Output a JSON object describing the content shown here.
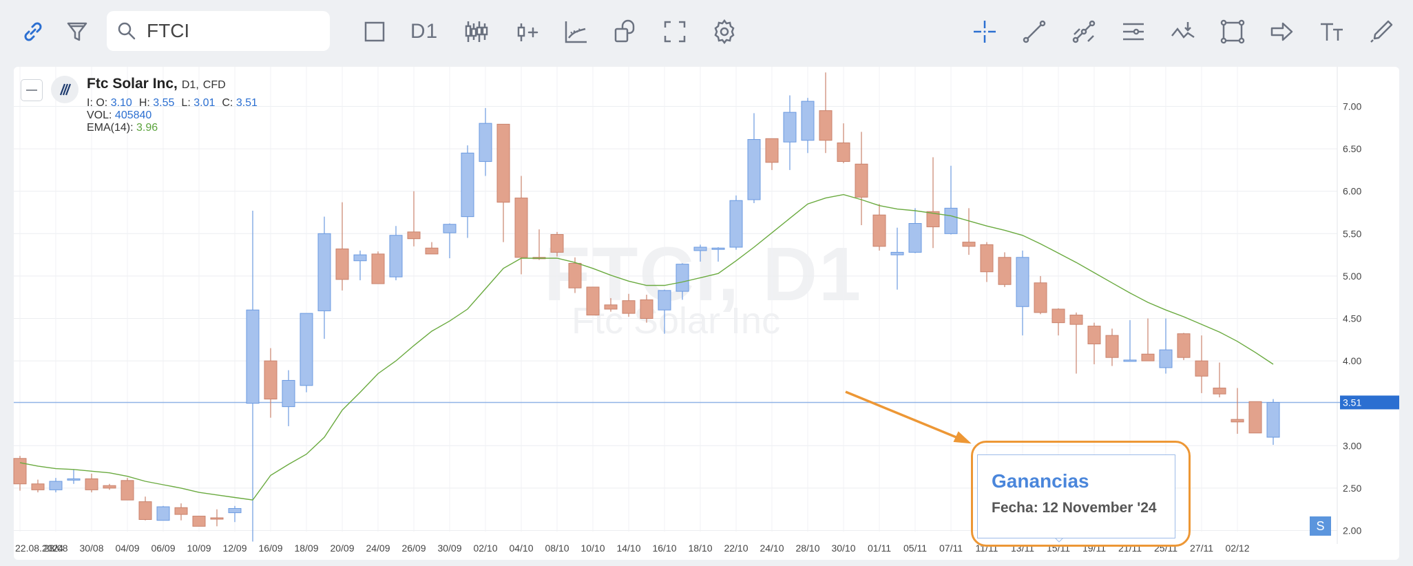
{
  "toolbar": {
    "search_value": "FTCI",
    "timeframe": "D1",
    "left_icons": [
      "link-icon",
      "filter-icon"
    ],
    "mid_icons": [
      "square-icon",
      "timeframe",
      "candles-icon",
      "add-indicator-icon",
      "indicators-icon",
      "compare-icon",
      "fullscreen-icon",
      "settings-icon"
    ],
    "right_icons": [
      "crosshair-icon",
      "trendline-icon",
      "multi-line-icon",
      "lines-icon",
      "wave-icon",
      "rectangle-icon",
      "arrow-icon",
      "text-icon",
      "brush-icon"
    ]
  },
  "legend": {
    "name": "Ftc Solar Inc,",
    "timeframe": "D1,",
    "type": "CFD",
    "o_label": "I: O:",
    "o": "3.10",
    "h_label": "H:",
    "h": "3.55",
    "l_label": "L:",
    "l": "3.01",
    "c_label": "C:",
    "c": "3.51",
    "vol_label": "VOL:",
    "vol": "405840",
    "ema_label": "EMA(14):",
    "ema": "3.96"
  },
  "watermark": {
    "symbol": "FTCI, D1",
    "name": "Ftc Solar Inc"
  },
  "tooltip": {
    "title": "Ganancias",
    "date": "Fecha: 12 November '24"
  },
  "badge": "S",
  "colors": {
    "up": "#a6c2ee",
    "up_border": "#6b9ae0",
    "down": "#e2a28c",
    "down_border": "#c9826c",
    "ema": "#6aaa3f",
    "price_line": "#2b6fd1",
    "highlight": "#ed9735"
  },
  "chart_data": {
    "type": "candlestick",
    "symbol": "FTCI",
    "current_price": "3.51",
    "y_ticks": [
      "7.00",
      "6.50",
      "6.00",
      "5.50",
      "5.00",
      "4.50",
      "4.00",
      "3.00",
      "2.50",
      "2.00"
    ],
    "x_tick_labels": [
      "22.08.2024",
      "28/08",
      "30/08",
      "04/09",
      "06/09",
      "10/09",
      "12/09",
      "16/09",
      "18/09",
      "20/09",
      "24/09",
      "26/09",
      "30/09",
      "02/10",
      "04/10",
      "08/10",
      "10/10",
      "14/10",
      "16/10",
      "18/10",
      "22/10",
      "24/10",
      "28/10",
      "30/10",
      "01/11",
      "05/11",
      "07/11",
      "11/11",
      "13/11",
      "15/11",
      "19/11",
      "21/11",
      "25/11",
      "27/11",
      "02/12"
    ],
    "candles": [
      {
        "o": 2.85,
        "h": 2.88,
        "l": 2.47,
        "c": 2.55
      },
      {
        "o": 2.55,
        "h": 2.6,
        "l": 2.45,
        "c": 2.48
      },
      {
        "o": 2.48,
        "h": 2.62,
        "l": 2.45,
        "c": 2.58
      },
      {
        "o": 2.6,
        "h": 2.72,
        "l": 2.55,
        "c": 2.61
      },
      {
        "o": 2.61,
        "h": 2.67,
        "l": 2.45,
        "c": 2.48
      },
      {
        "o": 2.53,
        "h": 2.55,
        "l": 2.48,
        "c": 2.5
      },
      {
        "o": 2.59,
        "h": 2.62,
        "l": 2.38,
        "c": 2.36
      },
      {
        "o": 2.34,
        "h": 2.4,
        "l": 2.12,
        "c": 2.13
      },
      {
        "o": 2.12,
        "h": 2.29,
        "l": 2.12,
        "c": 2.28
      },
      {
        "o": 2.27,
        "h": 2.32,
        "l": 2.12,
        "c": 2.19
      },
      {
        "o": 2.17,
        "h": 2.17,
        "l": 2.05,
        "c": 2.05
      },
      {
        "o": 2.15,
        "h": 2.25,
        "l": 2.05,
        "c": 2.14
      },
      {
        "o": 2.21,
        "h": 2.29,
        "l": 2.1,
        "c": 2.26
      },
      {
        "o": 3.5,
        "h": 5.77,
        "l": 1.87,
        "c": 4.6
      },
      {
        "o": 4.0,
        "h": 4.15,
        "l": 3.33,
        "c": 3.55
      },
      {
        "o": 3.46,
        "h": 3.89,
        "l": 3.23,
        "c": 3.77
      },
      {
        "o": 3.71,
        "h": 4.56,
        "l": 3.63,
        "c": 4.56
      },
      {
        "o": 4.59,
        "h": 5.7,
        "l": 4.26,
        "c": 5.5
      },
      {
        "o": 5.32,
        "h": 5.87,
        "l": 4.83,
        "c": 4.96
      },
      {
        "o": 5.18,
        "h": 5.3,
        "l": 4.95,
        "c": 5.25
      },
      {
        "o": 5.26,
        "h": 5.29,
        "l": 4.91,
        "c": 4.91
      },
      {
        "o": 4.99,
        "h": 5.59,
        "l": 4.95,
        "c": 5.48
      },
      {
        "o": 5.52,
        "h": 6.0,
        "l": 5.35,
        "c": 5.44
      },
      {
        "o": 5.33,
        "h": 5.4,
        "l": 5.26,
        "c": 5.26
      },
      {
        "o": 5.51,
        "h": 5.62,
        "l": 5.21,
        "c": 5.61
      },
      {
        "o": 5.7,
        "h": 6.54,
        "l": 5.45,
        "c": 6.45
      },
      {
        "o": 6.35,
        "h": 6.98,
        "l": 6.18,
        "c": 6.8
      },
      {
        "o": 6.79,
        "h": 6.79,
        "l": 5.4,
        "c": 5.87
      },
      {
        "o": 5.92,
        "h": 6.18,
        "l": 5.02,
        "c": 5.22
      },
      {
        "o": 5.22,
        "h": 5.55,
        "l": 5.19,
        "c": 5.21
      },
      {
        "o": 5.49,
        "h": 5.52,
        "l": 5.23,
        "c": 5.28
      },
      {
        "o": 5.15,
        "h": 5.22,
        "l": 4.8,
        "c": 4.86
      },
      {
        "o": 4.87,
        "h": 4.87,
        "l": 4.55,
        "c": 4.54
      },
      {
        "o": 4.66,
        "h": 4.74,
        "l": 4.58,
        "c": 4.61
      },
      {
        "o": 4.71,
        "h": 4.79,
        "l": 4.52,
        "c": 4.56
      },
      {
        "o": 4.72,
        "h": 4.78,
        "l": 4.45,
        "c": 4.5
      },
      {
        "o": 4.6,
        "h": 4.84,
        "l": 4.32,
        "c": 4.83
      },
      {
        "o": 4.82,
        "h": 5.15,
        "l": 4.72,
        "c": 5.14
      },
      {
        "o": 5.3,
        "h": 5.37,
        "l": 5.17,
        "c": 5.34
      },
      {
        "o": 5.32,
        "h": 5.34,
        "l": 5.17,
        "c": 5.33
      },
      {
        "o": 5.34,
        "h": 5.95,
        "l": 5.31,
        "c": 5.89
      },
      {
        "o": 5.9,
        "h": 6.92,
        "l": 5.86,
        "c": 6.61
      },
      {
        "o": 6.62,
        "h": 6.62,
        "l": 6.25,
        "c": 6.34
      },
      {
        "o": 6.58,
        "h": 7.13,
        "l": 6.25,
        "c": 6.93
      },
      {
        "o": 6.6,
        "h": 7.1,
        "l": 6.45,
        "c": 7.06
      },
      {
        "o": 6.95,
        "h": 7.4,
        "l": 6.45,
        "c": 6.6
      },
      {
        "o": 6.57,
        "h": 6.8,
        "l": 6.33,
        "c": 6.35
      },
      {
        "o": 6.32,
        "h": 6.7,
        "l": 5.6,
        "c": 5.93
      },
      {
        "o": 5.72,
        "h": 5.85,
        "l": 5.3,
        "c": 5.35
      },
      {
        "o": 5.25,
        "h": 5.57,
        "l": 4.84,
        "c": 5.28
      },
      {
        "o": 5.28,
        "h": 5.8,
        "l": 5.27,
        "c": 5.62
      },
      {
        "o": 5.76,
        "h": 6.4,
        "l": 5.33,
        "c": 5.58
      },
      {
        "o": 5.5,
        "h": 6.3,
        "l": 5.49,
        "c": 5.8
      },
      {
        "o": 5.4,
        "h": 5.8,
        "l": 5.25,
        "c": 5.35
      },
      {
        "o": 5.37,
        "h": 5.4,
        "l": 4.93,
        "c": 5.05
      },
      {
        "o": 5.22,
        "h": 5.28,
        "l": 4.87,
        "c": 4.9
      },
      {
        "o": 4.64,
        "h": 5.3,
        "l": 4.3,
        "c": 5.22
      },
      {
        "o": 4.92,
        "h": 5.0,
        "l": 4.55,
        "c": 4.57
      },
      {
        "o": 4.61,
        "h": 4.62,
        "l": 4.3,
        "c": 4.45
      },
      {
        "o": 4.54,
        "h": 4.57,
        "l": 3.85,
        "c": 4.43
      },
      {
        "o": 4.41,
        "h": 4.45,
        "l": 3.96,
        "c": 4.2
      },
      {
        "o": 4.3,
        "h": 4.38,
        "l": 3.94,
        "c": 4.04
      },
      {
        "o": 4.01,
        "h": 4.48,
        "l": 4.0,
        "c": 4.01
      },
      {
        "o": 4.08,
        "h": 4.5,
        "l": 4.0,
        "c": 4.0
      },
      {
        "o": 3.92,
        "h": 4.5,
        "l": 3.85,
        "c": 4.13
      },
      {
        "o": 4.32,
        "h": 4.33,
        "l": 4.01,
        "c": 4.04
      },
      {
        "o": 4.0,
        "h": 4.3,
        "l": 3.62,
        "c": 3.82
      },
      {
        "o": 3.68,
        "h": 3.98,
        "l": 3.57,
        "c": 3.61
      },
      {
        "o": 3.31,
        "h": 3.68,
        "l": 3.14,
        "c": 3.28
      },
      {
        "o": 3.52,
        "h": 3.52,
        "l": 3.15,
        "c": 3.15
      },
      {
        "o": 3.1,
        "h": 3.55,
        "l": 3.01,
        "c": 3.51
      }
    ],
    "ema_values": [
      2.8,
      2.76,
      2.73,
      2.72,
      2.7,
      2.68,
      2.64,
      2.58,
      2.54,
      2.5,
      2.45,
      2.42,
      2.39,
      2.36,
      2.65,
      2.78,
      2.9,
      3.1,
      3.42,
      3.63,
      3.85,
      4.0,
      4.18,
      4.35,
      4.47,
      4.61,
      4.85,
      5.09,
      5.21,
      5.21,
      5.21,
      5.16,
      5.09,
      5.01,
      4.94,
      4.89,
      4.89,
      4.93,
      4.98,
      5.03,
      5.18,
      5.34,
      5.51,
      5.68,
      5.85,
      5.92,
      5.96,
      5.9,
      5.83,
      5.79,
      5.77,
      5.74,
      5.71,
      5.65,
      5.59,
      5.54,
      5.48,
      5.38,
      5.27,
      5.16,
      5.04,
      4.92,
      4.8,
      4.69,
      4.6,
      4.52,
      4.43,
      4.34,
      4.23,
      4.1,
      3.96
    ]
  }
}
